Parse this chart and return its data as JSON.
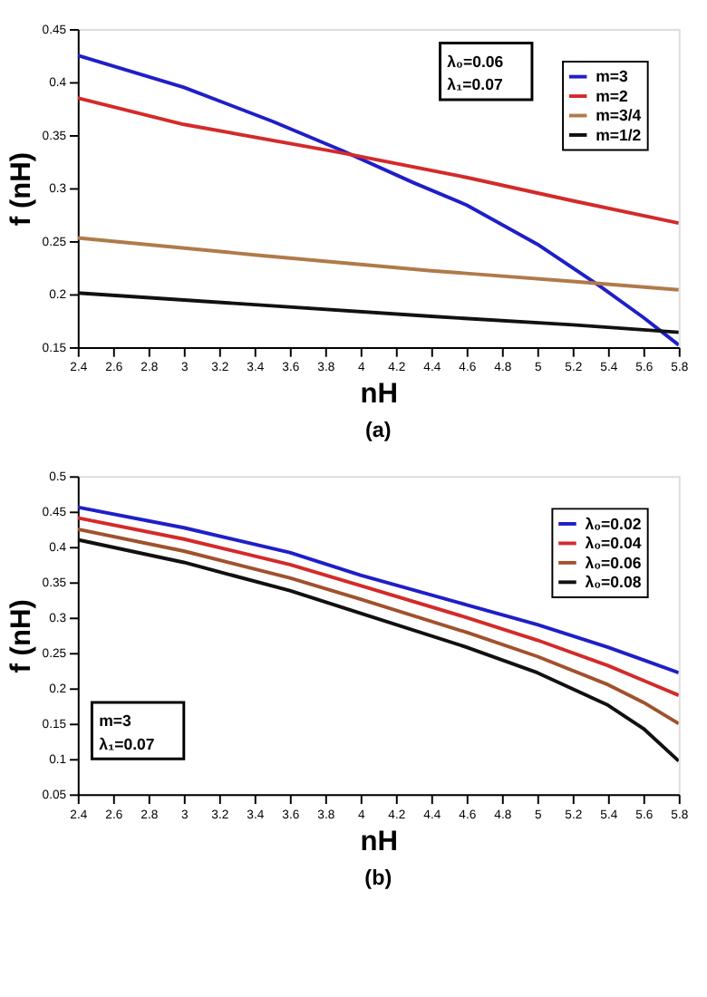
{
  "chart_data": [
    {
      "type": "line",
      "xlabel": "nH",
      "ylabel": "f (nH)",
      "xlim": [
        2.4,
        5.8
      ],
      "ylim": [
        0.15,
        0.45
      ],
      "xticks": [
        2.4,
        2.6,
        2.8,
        3,
        3.2,
        3.4,
        3.6,
        3.8,
        4,
        4.2,
        4.4,
        4.6,
        4.8,
        5,
        5.2,
        5.4,
        5.6,
        5.8
      ],
      "yticks": [
        0.15,
        0.2,
        0.25,
        0.3,
        0.35,
        0.4,
        0.45
      ],
      "legend": "top right",
      "grid": false,
      "marker": "none",
      "line_style": "solid",
      "annotations": [
        "λ₀=0.06",
        "λ₁=0.07",
        "(a)"
      ],
      "series": [
        {
          "name": "m=3",
          "color": "#1f1fc8",
          "x": [
            2.4,
            3.0,
            3.5,
            3.9,
            4.3,
            4.6,
            5.0,
            5.35,
            5.6,
            5.8
          ],
          "values": [
            0.425,
            0.395,
            0.363,
            0.335,
            0.305,
            0.284,
            0.247,
            0.208,
            0.178,
            0.152
          ]
        },
        {
          "name": "m=2",
          "color": "#d42a2a",
          "x": [
            2.4,
            3.0,
            3.9,
            4.6,
            5.2,
            5.8
          ],
          "values": [
            0.385,
            0.36,
            0.333,
            0.31,
            0.288,
            0.267
          ]
        },
        {
          "name": "m=3/4",
          "color": "#b07a4a",
          "x": [
            2.4,
            3.4,
            4.4,
            5.2,
            5.8
          ],
          "values": [
            0.253,
            0.237,
            0.222,
            0.212,
            0.204
          ]
        },
        {
          "name": "m=1/2",
          "color": "#111111",
          "x": [
            2.4,
            3.4,
            4.4,
            5.2,
            5.8
          ],
          "values": [
            0.201,
            0.19,
            0.179,
            0.171,
            0.164
          ]
        }
      ]
    },
    {
      "type": "line",
      "xlabel": "nH",
      "ylabel": "f (nH)",
      "xlim": [
        2.4,
        5.8
      ],
      "ylim": [
        0.05,
        0.5
      ],
      "xticks": [
        2.4,
        2.6,
        2.8,
        3,
        3.2,
        3.4,
        3.6,
        3.8,
        4,
        4.2,
        4.4,
        4.6,
        4.8,
        5,
        5.2,
        5.4,
        5.6,
        5.8
      ],
      "yticks": [
        0.05,
        0.1,
        0.15,
        0.2,
        0.25,
        0.3,
        0.35,
        0.4,
        0.45,
        0.5
      ],
      "legend": "top right",
      "grid": false,
      "marker": "none",
      "line_style": "solid",
      "annotations": [
        "m=3",
        "λ₁=0.07",
        "(b)"
      ],
      "series": [
        {
          "name": "λ₀=0.02",
          "color": "#1f1fc8",
          "x": [
            2.4,
            3.0,
            3.6,
            4.0,
            4.6,
            5.0,
            5.4,
            5.6,
            5.8
          ],
          "values": [
            0.456,
            0.427,
            0.392,
            0.36,
            0.318,
            0.29,
            0.258,
            0.24,
            0.222
          ]
        },
        {
          "name": "λ₀=0.04",
          "color": "#d42a2a",
          "x": [
            2.4,
            3.0,
            3.6,
            4.0,
            4.6,
            5.0,
            5.4,
            5.6,
            5.8
          ],
          "values": [
            0.441,
            0.411,
            0.375,
            0.345,
            0.3,
            0.268,
            0.232,
            0.211,
            0.19
          ]
        },
        {
          "name": "λ₀=0.06",
          "color": "#a0522d",
          "x": [
            2.4,
            3.0,
            3.6,
            4.0,
            4.6,
            5.0,
            5.4,
            5.6,
            5.8
          ],
          "values": [
            0.425,
            0.394,
            0.356,
            0.326,
            0.279,
            0.245,
            0.205,
            0.18,
            0.15
          ]
        },
        {
          "name": "λ₀=0.08",
          "color": "#111111",
          "x": [
            2.4,
            3.0,
            3.6,
            4.0,
            4.6,
            5.0,
            5.4,
            5.6,
            5.8
          ],
          "values": [
            0.41,
            0.378,
            0.338,
            0.306,
            0.258,
            0.222,
            0.176,
            0.143,
            0.097
          ]
        }
      ]
    }
  ]
}
